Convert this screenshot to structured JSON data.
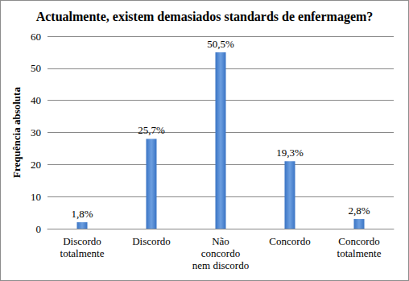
{
  "chart_data": {
    "type": "bar",
    "title": "Actualmente, existem demasiados standards de enfermagem?",
    "y_label": "Frequência absoluta",
    "categories": [
      "Discordo\ntotalmente",
      "Discordo",
      "Não\nconcordo\nnem discordo",
      "Concordo",
      "Concordo\ntotalmente"
    ],
    "values": [
      2,
      28,
      55,
      21,
      3
    ],
    "annotations": [
      "1,8%",
      "25,7%",
      "50,5%",
      "19,3%",
      "2,8%"
    ],
    "color": "#3a74c4",
    "ylim": [
      0,
      60
    ],
    "yticks": [
      0,
      10,
      20,
      30,
      40,
      50,
      60
    ],
    "grid": true
  }
}
